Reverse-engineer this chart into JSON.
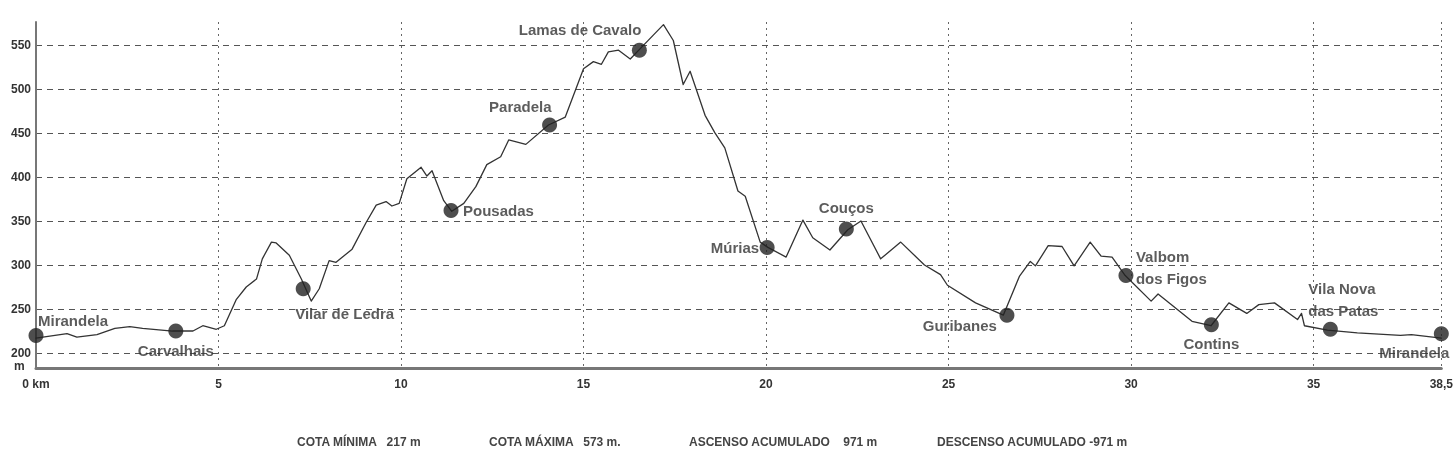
{
  "chart_data": {
    "type": "line",
    "ylabel": "m",
    "xlim": [
      0,
      38.5
    ],
    "xticks": [
      {
        "value": 0,
        "label": "0 km"
      },
      5,
      10,
      15,
      20,
      25,
      30,
      35,
      {
        "value": 38.5,
        "label": "38,5"
      }
    ],
    "ylim": [
      183,
      576
    ],
    "yticks": [
      200,
      250,
      300,
      350,
      400,
      450,
      500,
      550
    ],
    "grid": true,
    "series": [
      {
        "color": "#333333",
        "marker": "none",
        "line_style": "solid",
        "x": [
          0,
          0.85,
          1.12,
          1.67,
          2.16,
          2.57,
          2.92,
          3.74,
          4.3,
          4.57,
          4.94,
          5.16,
          5.49,
          5.76,
          6.04,
          6.2,
          6.45,
          6.58,
          6.94,
          7.27,
          7.54,
          7.76,
          8.03,
          8.22,
          8.66,
          9.04,
          9.32,
          9.59,
          9.75,
          9.95,
          10.16,
          10.55,
          10.71,
          10.85,
          11.17,
          11.39,
          11.72,
          12.05,
          12.35,
          12.73,
          12.95,
          13.42,
          14.04,
          14.5,
          15.0,
          15.27,
          15.49,
          15.68,
          15.96,
          16.28,
          16.56,
          17.19,
          17.46,
          17.73,
          17.92,
          18.33,
          18.6,
          18.87,
          19.23,
          19.43,
          19.84,
          20.05,
          20.55,
          21.01,
          21.28,
          21.75,
          22.24,
          22.6,
          23.14,
          23.69,
          24.34,
          24.78,
          24.97,
          25.74,
          26.5,
          26.94,
          27.24,
          27.38,
          27.73,
          28.11,
          28.44,
          28.88,
          29.18,
          29.48,
          29.84,
          30.55,
          30.74,
          31.67,
          32.19,
          32.68,
          33.17,
          33.5,
          33.93,
          34.56,
          34.67,
          34.75,
          35.38,
          36.2,
          37.38,
          37.68,
          38.5
        ],
        "values": [
          217,
          222,
          218,
          221,
          228,
          230,
          228,
          225,
          225,
          231,
          227,
          231,
          261,
          275,
          284,
          307,
          326,
          325,
          311,
          284,
          259,
          273,
          305,
          303,
          318,
          348,
          368,
          372,
          367,
          370,
          398,
          411,
          401,
          407,
          373,
          361,
          370,
          389,
          414,
          423,
          442,
          437,
          459,
          468,
          523,
          531,
          528,
          542,
          544,
          534,
          546,
          573,
          555,
          505,
          520,
          470,
          450,
          433,
          384,
          378,
          326,
          320,
          309,
          351,
          331,
          317,
          340,
          350,
          307,
          326,
          300,
          289,
          277,
          257,
          243,
          287,
          304,
          299,
          322,
          321,
          299,
          326,
          310,
          309,
          288,
          259,
          267,
          236,
          231,
          257,
          245,
          255,
          257,
          238,
          245,
          231,
          226,
          223,
          220,
          221,
          217
        ]
      },
      {
        "type": "scatter",
        "color": "#222222",
        "marker": "circle",
        "x": [
          0,
          3.83,
          7.32,
          11.37,
          14.07,
          16.53,
          20.03,
          22.2,
          26.6,
          29.86,
          32.2,
          35.46,
          38.5
        ],
        "values": [
          220,
          225,
          273,
          362,
          459,
          544,
          320,
          341,
          243,
          288,
          232,
          227,
          222
        ]
      }
    ],
    "annotations": [
      {
        "text": "Mirandela",
        "x": 0,
        "y": 220
      },
      {
        "text": "Carvalhais",
        "x": 3.83,
        "y": 225
      },
      {
        "text": "Vilar de Ledra",
        "x": 7.32,
        "y": 273
      },
      {
        "text": "Pousadas",
        "x": 11.37,
        "y": 362
      },
      {
        "text": "Paradela",
        "x": 14.07,
        "y": 459
      },
      {
        "text": "Lamas de Cavalo",
        "x": 16.53,
        "y": 544
      },
      {
        "text": "Múrias",
        "x": 20.03,
        "y": 320
      },
      {
        "text": "Couços",
        "x": 22.2,
        "y": 341
      },
      {
        "text": "Guribanes",
        "x": 26.6,
        "y": 243
      },
      {
        "text": "Valbom dos Figos",
        "x": 29.86,
        "y": 288
      },
      {
        "text": "Contins",
        "x": 32.2,
        "y": 232
      },
      {
        "text": "Vila Nova das Patas",
        "x": 35.46,
        "y": 227
      },
      {
        "text": "Mirandela",
        "x": 38.5,
        "y": 222
      },
      "COTA MÍNIMA   217 m",
      "COTA MÁXIMA   573 m.",
      "ASCENSO ACUMULADO    971 m",
      "DESCENSO ACUMULADO -971 m"
    ]
  }
}
